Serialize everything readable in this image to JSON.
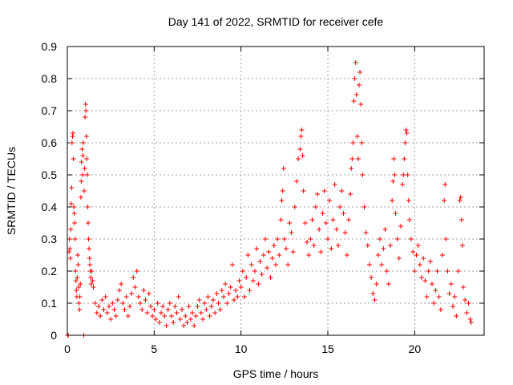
{
  "chart_data": {
    "type": "scatter",
    "title": "Day 141 of 2022, SRMTID for receiver cefe",
    "xlabel": "GPS time / hours",
    "ylabel": "SRMTID / TECUs",
    "xlim": [
      0,
      24
    ],
    "ylim": [
      0,
      0.9
    ],
    "xticks": [
      0,
      5,
      10,
      15,
      20
    ],
    "xtick_labels": [
      "0",
      "5",
      "10",
      "15",
      "20"
    ],
    "yticks": [
      0,
      0.1,
      0.2,
      0.3,
      0.4,
      0.5,
      0.6,
      0.7,
      0.8,
      0.9
    ],
    "ytick_labels": [
      "0",
      "0.1",
      "0.2",
      "0.3",
      "0.4",
      "0.5",
      "0.6",
      "0.7",
      "0.8",
      "0.9"
    ],
    "grid": true,
    "marker": "+",
    "color": "#ff0000",
    "series": [
      {
        "name": "SRMTID",
        "points": [
          [
            0.02,
            0.0
          ],
          [
            0.05,
            0.0
          ],
          [
            0.1,
            0.26
          ],
          [
            0.12,
            0.3
          ],
          [
            0.15,
            0.27
          ],
          [
            0.18,
            0.24
          ],
          [
            0.2,
            0.33
          ],
          [
            0.22,
            0.41
          ],
          [
            0.25,
            0.46
          ],
          [
            0.27,
            0.6
          ],
          [
            0.3,
            0.62
          ],
          [
            0.32,
            0.63
          ],
          [
            0.35,
            0.55
          ],
          [
            0.37,
            0.4
          ],
          [
            0.4,
            0.38
          ],
          [
            0.42,
            0.35
          ],
          [
            0.45,
            0.3
          ],
          [
            0.47,
            0.2
          ],
          [
            0.5,
            0.17
          ],
          [
            0.52,
            0.14
          ],
          [
            0.55,
            0.12
          ],
          [
            0.57,
            0.18
          ],
          [
            0.6,
            0.25
          ],
          [
            0.62,
            0.22
          ],
          [
            0.65,
            0.15
          ],
          [
            0.67,
            0.1
          ],
          [
            0.7,
            0.08
          ],
          [
            0.72,
            0.12
          ],
          [
            0.75,
            0.16
          ],
          [
            0.78,
            0.43
          ],
          [
            0.8,
            0.48
          ],
          [
            0.82,
            0.54
          ],
          [
            0.85,
            0.58
          ],
          [
            0.88,
            0.5
          ],
          [
            0.9,
            0.56
          ],
          [
            0.92,
            0.6
          ],
          [
            0.95,
            0.0
          ],
          [
            0.97,
            0.45
          ],
          [
            1.0,
            0.52
          ],
          [
            1.02,
            0.68
          ],
          [
            1.05,
            0.72
          ],
          [
            1.07,
            0.7
          ],
          [
            1.1,
            0.62
          ],
          [
            1.12,
            0.55
          ],
          [
            1.15,
            0.5
          ],
          [
            1.18,
            0.4
          ],
          [
            1.2,
            0.35
          ],
          [
            1.22,
            0.3
          ],
          [
            1.25,
            0.27
          ],
          [
            1.28,
            0.24
          ],
          [
            1.3,
            0.22
          ],
          [
            1.32,
            0.2
          ],
          [
            1.35,
            0.18
          ],
          [
            1.38,
            0.16
          ],
          [
            1.4,
            0.2
          ],
          [
            1.45,
            0.17
          ],
          [
            1.5,
            0.15
          ],
          [
            1.6,
            0.1
          ],
          [
            1.7,
            0.07
          ],
          [
            1.8,
            0.09
          ],
          [
            1.9,
            0.06
          ],
          [
            2.0,
            0.11
          ],
          [
            2.1,
            0.08
          ],
          [
            2.2,
            0.12
          ],
          [
            2.3,
            0.07
          ],
          [
            2.4,
            0.09
          ],
          [
            2.5,
            0.05
          ],
          [
            2.6,
            0.1
          ],
          [
            2.7,
            0.08
          ],
          [
            2.8,
            0.06
          ],
          [
            2.9,
            0.11
          ],
          [
            3.0,
            0.14
          ],
          [
            3.1,
            0.16
          ],
          [
            3.2,
            0.1
          ],
          [
            3.3,
            0.08
          ],
          [
            3.4,
            0.12
          ],
          [
            3.5,
            0.06
          ],
          [
            3.6,
            0.09
          ],
          [
            3.7,
            0.13
          ],
          [
            3.8,
            0.18
          ],
          [
            3.9,
            0.15
          ],
          [
            4.0,
            0.2
          ],
          [
            4.1,
            0.12
          ],
          [
            4.2,
            0.1
          ],
          [
            4.3,
            0.08
          ],
          [
            4.4,
            0.14
          ],
          [
            4.5,
            0.11
          ],
          [
            4.6,
            0.07
          ],
          [
            4.7,
            0.13
          ],
          [
            4.8,
            0.09
          ],
          [
            4.9,
            0.06
          ],
          [
            5.0,
            0.08
          ],
          [
            5.1,
            0.05
          ],
          [
            5.2,
            0.1
          ],
          [
            5.3,
            0.04
          ],
          [
            5.4,
            0.07
          ],
          [
            5.5,
            0.09
          ],
          [
            5.6,
            0.06
          ],
          [
            5.7,
            0.03
          ],
          [
            5.8,
            0.08
          ],
          [
            5.9,
            0.1
          ],
          [
            6.0,
            0.06
          ],
          [
            6.1,
            0.04
          ],
          [
            6.2,
            0.09
          ],
          [
            6.3,
            0.07
          ],
          [
            6.4,
            0.12
          ],
          [
            6.5,
            0.05
          ],
          [
            6.6,
            0.08
          ],
          [
            6.7,
            0.03
          ],
          [
            6.8,
            0.06
          ],
          [
            6.9,
            0.04
          ],
          [
            7.0,
            0.09
          ],
          [
            7.1,
            0.05
          ],
          [
            7.2,
            0.07
          ],
          [
            7.3,
            0.03
          ],
          [
            7.4,
            0.06
          ],
          [
            7.5,
            0.09
          ],
          [
            7.6,
            0.11
          ],
          [
            7.7,
            0.07
          ],
          [
            7.8,
            0.05
          ],
          [
            7.9,
            0.1
          ],
          [
            8.0,
            0.08
          ],
          [
            8.1,
            0.12
          ],
          [
            8.2,
            0.06
          ],
          [
            8.3,
            0.09
          ],
          [
            8.4,
            0.11
          ],
          [
            8.5,
            0.07
          ],
          [
            8.6,
            0.13
          ],
          [
            8.7,
            0.1
          ],
          [
            8.8,
            0.08
          ],
          [
            8.9,
            0.14
          ],
          [
            9.0,
            0.12
          ],
          [
            9.1,
            0.16
          ],
          [
            9.2,
            0.1
          ],
          [
            9.3,
            0.13
          ],
          [
            9.4,
            0.15
          ],
          [
            9.5,
            0.22
          ],
          [
            9.6,
            0.11
          ],
          [
            9.7,
            0.14
          ],
          [
            9.8,
            0.12
          ],
          [
            9.9,
            0.17
          ],
          [
            10.0,
            0.15
          ],
          [
            10.1,
            0.2
          ],
          [
            10.2,
            0.12
          ],
          [
            10.3,
            0.18
          ],
          [
            10.4,
            0.25
          ],
          [
            10.5,
            0.14
          ],
          [
            10.6,
            0.22
          ],
          [
            10.7,
            0.17
          ],
          [
            10.8,
            0.2
          ],
          [
            10.9,
            0.27
          ],
          [
            11.0,
            0.16
          ],
          [
            11.1,
            0.23
          ],
          [
            11.2,
            0.19
          ],
          [
            11.3,
            0.25
          ],
          [
            11.4,
            0.3
          ],
          [
            11.5,
            0.21
          ],
          [
            11.6,
            0.26
          ],
          [
            11.7,
            0.18
          ],
          [
            11.8,
            0.24
          ],
          [
            11.9,
            0.28
          ],
          [
            12.0,
            0.22
          ],
          [
            12.1,
            0.3
          ],
          [
            12.2,
            0.25
          ],
          [
            12.3,
            0.36
          ],
          [
            12.35,
            0.42
          ],
          [
            12.4,
            0.45
          ],
          [
            12.45,
            0.52
          ],
          [
            12.5,
            0.3
          ],
          [
            12.6,
            0.27
          ],
          [
            12.7,
            0.22
          ],
          [
            12.8,
            0.35
          ],
          [
            12.9,
            0.32
          ],
          [
            13.0,
            0.26
          ],
          [
            13.1,
            0.4
          ],
          [
            13.2,
            0.48
          ],
          [
            13.3,
            0.55
          ],
          [
            13.4,
            0.58
          ],
          [
            13.45,
            0.62
          ],
          [
            13.5,
            0.64
          ],
          [
            13.55,
            0.56
          ],
          [
            13.6,
            0.45
          ],
          [
            13.7,
            0.35
          ],
          [
            13.8,
            0.29
          ],
          [
            13.9,
            0.25
          ],
          [
            14.0,
            0.3
          ],
          [
            14.1,
            0.36
          ],
          [
            14.2,
            0.28
          ],
          [
            14.3,
            0.4
          ],
          [
            14.4,
            0.44
          ],
          [
            14.5,
            0.33
          ],
          [
            14.6,
            0.26
          ],
          [
            14.7,
            0.38
          ],
          [
            14.8,
            0.45
          ],
          [
            14.9,
            0.35
          ],
          [
            15.0,
            0.3
          ],
          [
            15.1,
            0.42
          ],
          [
            15.2,
            0.27
          ],
          [
            15.3,
            0.36
          ],
          [
            15.4,
            0.47
          ],
          [
            15.5,
            0.33
          ],
          [
            15.6,
            0.28
          ],
          [
            15.7,
            0.4
          ],
          [
            15.8,
            0.45
          ],
          [
            15.9,
            0.38
          ],
          [
            16.0,
            0.32
          ],
          [
            16.1,
            0.25
          ],
          [
            16.2,
            0.36
          ],
          [
            16.3,
            0.44
          ],
          [
            16.35,
            0.52
          ],
          [
            16.4,
            0.55
          ],
          [
            16.45,
            0.6
          ],
          [
            16.5,
            0.73
          ],
          [
            16.55,
            0.8
          ],
          [
            16.6,
            0.85
          ],
          [
            16.65,
            0.75
          ],
          [
            16.7,
            0.62
          ],
          [
            16.75,
            0.55
          ],
          [
            16.8,
            0.78
          ],
          [
            16.85,
            0.82
          ],
          [
            16.9,
            0.72
          ],
          [
            16.95,
            0.6
          ],
          [
            17.0,
            0.5
          ],
          [
            17.1,
            0.4
          ],
          [
            17.2,
            0.32
          ],
          [
            17.3,
            0.28
          ],
          [
            17.4,
            0.22
          ],
          [
            17.5,
            0.18
          ],
          [
            17.6,
            0.13
          ],
          [
            17.7,
            0.11
          ],
          [
            17.8,
            0.16
          ],
          [
            17.9,
            0.25
          ],
          [
            18.0,
            0.3
          ],
          [
            18.1,
            0.22
          ],
          [
            18.2,
            0.27
          ],
          [
            18.3,
            0.33
          ],
          [
            18.4,
            0.2
          ],
          [
            18.5,
            0.16
          ],
          [
            18.6,
            0.28
          ],
          [
            18.7,
            0.42
          ],
          [
            18.75,
            0.48
          ],
          [
            18.8,
            0.55
          ],
          [
            18.85,
            0.5
          ],
          [
            18.9,
            0.38
          ],
          [
            19.0,
            0.3
          ],
          [
            19.1,
            0.24
          ],
          [
            19.2,
            0.34
          ],
          [
            19.3,
            0.47
          ],
          [
            19.35,
            0.5
          ],
          [
            19.4,
            0.55
          ],
          [
            19.45,
            0.6
          ],
          [
            19.5,
            0.64
          ],
          [
            19.55,
            0.63
          ],
          [
            19.6,
            0.5
          ],
          [
            19.65,
            0.42
          ],
          [
            19.7,
            0.36
          ],
          [
            19.8,
            0.3
          ],
          [
            19.9,
            0.26
          ],
          [
            20.0,
            0.2
          ],
          [
            20.1,
            0.25
          ],
          [
            20.2,
            0.28
          ],
          [
            20.3,
            0.22
          ],
          [
            20.4,
            0.18
          ],
          [
            20.5,
            0.24
          ],
          [
            20.6,
            0.17
          ],
          [
            20.7,
            0.12
          ],
          [
            20.8,
            0.2
          ],
          [
            20.9,
            0.23
          ],
          [
            21.0,
            0.16
          ],
          [
            21.1,
            0.1
          ],
          [
            21.2,
            0.14
          ],
          [
            21.3,
            0.2
          ],
          [
            21.4,
            0.12
          ],
          [
            21.5,
            0.08
          ],
          [
            21.6,
            0.25
          ],
          [
            21.7,
            0.42
          ],
          [
            21.75,
            0.47
          ],
          [
            21.8,
            0.3
          ],
          [
            21.9,
            0.2
          ],
          [
            22.0,
            0.13
          ],
          [
            22.1,
            0.16
          ],
          [
            22.2,
            0.09
          ],
          [
            22.3,
            0.12
          ],
          [
            22.4,
            0.06
          ],
          [
            22.5,
            0.2
          ],
          [
            22.6,
            0.42
          ],
          [
            22.65,
            0.43
          ],
          [
            22.7,
            0.36
          ],
          [
            22.75,
            0.28
          ],
          [
            22.8,
            0.15
          ],
          [
            22.9,
            0.11
          ],
          [
            23.0,
            0.07
          ],
          [
            23.1,
            0.1
          ],
          [
            23.2,
            0.05
          ],
          [
            23.25,
            0.04
          ]
        ]
      }
    ]
  }
}
